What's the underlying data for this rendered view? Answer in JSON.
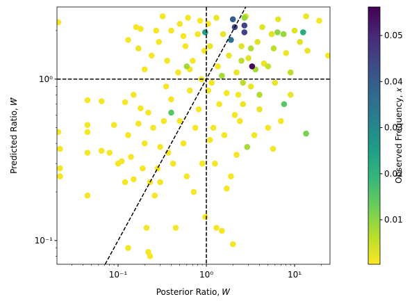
{
  "chart_data": {
    "type": "scatter",
    "x_label": "Posterior Ratio, 𝑊",
    "y_label": "Predicted Ratio, 𝑊̂",
    "colorbar_label": "Observed Frequency, 𝑥",
    "xscale": "log",
    "yscale": "log",
    "xlim": [
      0.0203,
      25.2
    ],
    "ylim": [
      0.0713,
      2.8
    ],
    "xticks": [
      {
        "value": 0.1,
        "label": "10⁻¹"
      },
      {
        "value": 1,
        "label": "10⁰"
      },
      {
        "value": 10,
        "label": "10¹"
      }
    ],
    "yticks": [
      {
        "value": 0.1,
        "label": "10⁻¹"
      },
      {
        "value": 1,
        "label": "10⁰"
      }
    ],
    "xminorticks": [
      0.03,
      0.04,
      0.05,
      0.06,
      0.07,
      0.08,
      0.09,
      0.2,
      0.3,
      0.4,
      0.5,
      0.6,
      0.7,
      0.8,
      0.9,
      2,
      3,
      4,
      5,
      6,
      7,
      8,
      9,
      20
    ],
    "yminorticks": [
      0.08,
      0.09,
      0.2,
      0.3,
      0.4,
      0.5,
      0.6,
      0.7,
      0.8,
      0.9,
      2
    ],
    "vlines": [
      1
    ],
    "hlines": [
      1
    ],
    "diagonal": true,
    "clim": [
      0.00034,
      0.0562
    ],
    "cticks": [
      0.01,
      0.02,
      0.03,
      0.04,
      0.05
    ],
    "colormap": [
      "#fde725",
      "#b5de2b",
      "#6ece58",
      "#35b779",
      "#1f9e89",
      "#26828e",
      "#31688e",
      "#3e4989",
      "#482878",
      "#440154"
    ],
    "points": [
      {
        "x": 0.021,
        "y": 2.25,
        "c": 0.001
      },
      {
        "x": 0.021,
        "y": 0.47,
        "c": 0.001
      },
      {
        "x": 0.022,
        "y": 0.37,
        "c": 0.001
      },
      {
        "x": 0.022,
        "y": 0.28,
        "c": 0.001
      },
      {
        "x": 0.022,
        "y": 0.25,
        "c": 0.001
      },
      {
        "x": 0.045,
        "y": 0.74,
        "c": 0.001
      },
      {
        "x": 0.045,
        "y": 0.52,
        "c": 0.001
      },
      {
        "x": 0.045,
        "y": 0.47,
        "c": 0.001
      },
      {
        "x": 0.045,
        "y": 0.35,
        "c": 0.001
      },
      {
        "x": 0.045,
        "y": 0.19,
        "c": 0.001
      },
      {
        "x": 0.065,
        "y": 0.73,
        "c": 0.001
      },
      {
        "x": 0.065,
        "y": 0.36,
        "c": 0.001
      },
      {
        "x": 0.08,
        "y": 0.35,
        "c": 0.001
      },
      {
        "x": 0.09,
        "y": 0.52,
        "c": 0.001
      },
      {
        "x": 0.1,
        "y": 0.3,
        "c": 0.001
      },
      {
        "x": 0.11,
        "y": 0.31,
        "c": 0.001
      },
      {
        "x": 0.12,
        "y": 0.23,
        "c": 0.001
      },
      {
        "x": 0.12,
        "y": 0.72,
        "c": 0.001
      },
      {
        "x": 0.13,
        "y": 1.75,
        "c": 0.001
      },
      {
        "x": 0.13,
        "y": 0.45,
        "c": 0.001
      },
      {
        "x": 0.14,
        "y": 0.33,
        "c": 0.001
      },
      {
        "x": 0.15,
        "y": 0.24,
        "c": 0.001
      },
      {
        "x": 0.15,
        "y": 0.8,
        "c": 0.001
      },
      {
        "x": 0.16,
        "y": 2.1,
        "c": 0.001
      },
      {
        "x": 0.17,
        "y": 1.55,
        "c": 0.002
      },
      {
        "x": 0.17,
        "y": 0.53,
        "c": 0.001
      },
      {
        "x": 0.18,
        "y": 2.05,
        "c": 0.001
      },
      {
        "x": 0.18,
        "y": 0.66,
        "c": 0.001
      },
      {
        "x": 0.19,
        "y": 0.28,
        "c": 0.001
      },
      {
        "x": 0.2,
        "y": 1.15,
        "c": 0.001
      },
      {
        "x": 0.2,
        "y": 0.4,
        "c": 0.001
      },
      {
        "x": 0.21,
        "y": 0.12,
        "c": 0.001
      },
      {
        "x": 0.22,
        "y": 0.62,
        "c": 0.001
      },
      {
        "x": 0.22,
        "y": 0.085,
        "c": 0.001
      },
      {
        "x": 0.24,
        "y": 1.4,
        "c": 0.001
      },
      {
        "x": 0.25,
        "y": 0.5,
        "c": 0.001
      },
      {
        "x": 0.26,
        "y": 0.19,
        "c": 0.001
      },
      {
        "x": 0.27,
        "y": 2.0,
        "c": 0.001
      },
      {
        "x": 0.28,
        "y": 0.28,
        "c": 0.001
      },
      {
        "x": 0.29,
        "y": 1.7,
        "c": 0.001
      },
      {
        "x": 0.3,
        "y": 0.23,
        "c": 0.001
      },
      {
        "x": 0.32,
        "y": 2.45,
        "c": 0.001
      },
      {
        "x": 0.33,
        "y": 0.55,
        "c": 0.001
      },
      {
        "x": 0.35,
        "y": 0.9,
        "c": 0.001
      },
      {
        "x": 0.36,
        "y": 1.3,
        "c": 0.001
      },
      {
        "x": 0.37,
        "y": 0.35,
        "c": 0.001
      },
      {
        "x": 0.4,
        "y": 2.0,
        "c": 0.001
      },
      {
        "x": 0.42,
        "y": 0.3,
        "c": 0.001
      },
      {
        "x": 0.45,
        "y": 0.12,
        "c": 0.001
      },
      {
        "x": 0.48,
        "y": 1.1,
        "c": 0.001
      },
      {
        "x": 0.5,
        "y": 2.2,
        "c": 0.001
      },
      {
        "x": 0.5,
        "y": 0.55,
        "c": 0.001
      },
      {
        "x": 0.55,
        "y": 0.4,
        "c": 0.001
      },
      {
        "x": 0.58,
        "y": 1.6,
        "c": 0.001
      },
      {
        "x": 0.6,
        "y": 0.25,
        "c": 0.001
      },
      {
        "x": 0.62,
        "y": 2.4,
        "c": 0.001
      },
      {
        "x": 0.65,
        "y": 0.85,
        "c": 0.001
      },
      {
        "x": 0.7,
        "y": 1.3,
        "c": 0.001
      },
      {
        "x": 0.72,
        "y": 0.2,
        "c": 0.001
      },
      {
        "x": 0.75,
        "y": 0.5,
        "c": 0.001
      },
      {
        "x": 0.8,
        "y": 1.9,
        "c": 0.001
      },
      {
        "x": 0.82,
        "y": 0.65,
        "c": 0.001
      },
      {
        "x": 0.85,
        "y": 2.3,
        "c": 0.001
      },
      {
        "x": 0.88,
        "y": 1.0,
        "c": 0.001
      },
      {
        "x": 0.9,
        "y": 0.3,
        "c": 0.001
      },
      {
        "x": 0.95,
        "y": 1.5,
        "c": 0.001
      },
      {
        "x": 0.97,
        "y": 0.14,
        "c": 0.001
      },
      {
        "x": 0.23,
        "y": 0.08,
        "c": 0.001
      },
      {
        "x": 0.13,
        "y": 0.09,
        "c": 0.001
      },
      {
        "x": 0.23,
        "y": 0.23,
        "c": 0.001
      },
      {
        "x": 0.3,
        "y": 0.38,
        "c": 0.001
      },
      {
        "x": 0.4,
        "y": 0.75,
        "c": 0.001
      },
      {
        "x": 0.55,
        "y": 1.85,
        "c": 0.001
      },
      {
        "x": 0.65,
        "y": 1.15,
        "c": 0.001
      },
      {
        "x": 1.05,
        "y": 2.2,
        "c": 0.001
      },
      {
        "x": 1.1,
        "y": 1.6,
        "c": 0.002
      },
      {
        "x": 1.15,
        "y": 0.95,
        "c": 0.001
      },
      {
        "x": 1.2,
        "y": 0.5,
        "c": 0.001
      },
      {
        "x": 1.25,
        "y": 0.3,
        "c": 0.001
      },
      {
        "x": 1.3,
        "y": 2.4,
        "c": 0.002
      },
      {
        "x": 1.35,
        "y": 1.2,
        "c": 0.001
      },
      {
        "x": 1.4,
        "y": 0.7,
        "c": 0.001
      },
      {
        "x": 1.5,
        "y": 0.115,
        "c": 0.001
      },
      {
        "x": 1.55,
        "y": 1.9,
        "c": 0.002
      },
      {
        "x": 1.6,
        "y": 0.45,
        "c": 0.001
      },
      {
        "x": 1.7,
        "y": 0.82,
        "c": 0.001
      },
      {
        "x": 1.8,
        "y": 1.4,
        "c": 0.002
      },
      {
        "x": 1.9,
        "y": 0.25,
        "c": 0.001
      },
      {
        "x": 2.0,
        "y": 0.095,
        "c": 0.001
      },
      {
        "x": 2.1,
        "y": 0.6,
        "c": 0.001
      },
      {
        "x": 2.2,
        "y": 1.1,
        "c": 0.002
      },
      {
        "x": 2.3,
        "y": 0.8,
        "c": 0.001
      },
      {
        "x": 2.4,
        "y": 0.55,
        "c": 0.001
      },
      {
        "x": 2.5,
        "y": 1.6,
        "c": 0.003
      },
      {
        "x": 2.6,
        "y": 0.7,
        "c": 0.002
      },
      {
        "x": 2.8,
        "y": 2.45,
        "c": 0.003
      },
      {
        "x": 3.0,
        "y": 1.35,
        "c": 0.003
      },
      {
        "x": 3.2,
        "y": 0.9,
        "c": 0.002
      },
      {
        "x": 3.5,
        "y": 0.45,
        "c": 0.001
      },
      {
        "x": 3.8,
        "y": 1.7,
        "c": 0.003
      },
      {
        "x": 4.0,
        "y": 0.65,
        "c": 0.002
      },
      {
        "x": 4.3,
        "y": 2.1,
        "c": 0.003
      },
      {
        "x": 4.5,
        "y": 1.25,
        "c": 0.002
      },
      {
        "x": 5.0,
        "y": 0.5,
        "c": 0.001
      },
      {
        "x": 5.5,
        "y": 1.9,
        "c": 0.003
      },
      {
        "x": 5.7,
        "y": 0.37,
        "c": 0.001
      },
      {
        "x": 6.0,
        "y": 0.95,
        "c": 0.002
      },
      {
        "x": 6.5,
        "y": 2.35,
        "c": 0.002
      },
      {
        "x": 7.0,
        "y": 0.55,
        "c": 0.001
      },
      {
        "x": 8.0,
        "y": 1.45,
        "c": 0.002
      },
      {
        "x": 9.0,
        "y": 0.8,
        "c": 0.002
      },
      {
        "x": 10.0,
        "y": 2.0,
        "c": 0.003
      },
      {
        "x": 11.5,
        "y": 1.7,
        "c": 0.003
      },
      {
        "x": 13.5,
        "y": 2.45,
        "c": 0.002
      },
      {
        "x": 14.0,
        "y": 1.5,
        "c": 0.002
      },
      {
        "x": 19,
        "y": 2.3,
        "c": 0.001
      },
      {
        "x": 24,
        "y": 1.4,
        "c": 0.001
      },
      {
        "x": 1.1,
        "y": 0.42,
        "c": 0.001
      },
      {
        "x": 1.3,
        "y": 0.12,
        "c": 0.001
      },
      {
        "x": 1.7,
        "y": 0.21,
        "c": 0.001
      },
      {
        "x": 2.2,
        "y": 0.34,
        "c": 0.001
      },
      {
        "x": 1.05,
        "y": 0.85,
        "c": 0.001
      },
      {
        "x": 1.5,
        "y": 1.05,
        "c": 0.008
      },
      {
        "x": 2.5,
        "y": 1.3,
        "c": 0.006
      },
      {
        "x": 3.6,
        "y": 1.15,
        "c": 0.008
      },
      {
        "x": 4.0,
        "y": 0.8,
        "c": 0.007
      },
      {
        "x": 5.8,
        "y": 1.55,
        "c": 0.006
      },
      {
        "x": 6.4,
        "y": 1.95,
        "c": 0.01
      },
      {
        "x": 7.5,
        "y": 1.9,
        "c": 0.009
      },
      {
        "x": 3.2,
        "y": 1.55,
        "c": 0.007
      },
      {
        "x": 2.6,
        "y": 0.95,
        "c": 0.006
      },
      {
        "x": 5,
        "y": 1.2,
        "c": 0.005
      },
      {
        "x": 0.6,
        "y": 1.2,
        "c": 0.008
      },
      {
        "x": 2.7,
        "y": 2.4,
        "c": 0.009
      },
      {
        "x": 9,
        "y": 1.1,
        "c": 0.006
      },
      {
        "x": 2.9,
        "y": 0.38,
        "c": 0.008
      },
      {
        "x": 0.4,
        "y": 0.62,
        "c": 0.015
      },
      {
        "x": 13.5,
        "y": 0.46,
        "c": 0.012
      },
      {
        "x": 7.6,
        "y": 0.7,
        "c": 0.015
      },
      {
        "x": 0.97,
        "y": 1.95,
        "c": 0.025
      },
      {
        "x": 12.5,
        "y": 1.95,
        "c": 0.022
      },
      {
        "x": 1.9,
        "y": 1.75,
        "c": 0.035
      },
      {
        "x": 2.0,
        "y": 2.35,
        "c": 0.04
      },
      {
        "x": 2.1,
        "y": 2.1,
        "c": 0.045
      },
      {
        "x": 2.7,
        "y": 2.15,
        "c": 0.045
      },
      {
        "x": 2.7,
        "y": 1.95,
        "c": 0.045
      },
      {
        "x": 3.3,
        "y": 1.2,
        "c": 0.055
      }
    ]
  }
}
